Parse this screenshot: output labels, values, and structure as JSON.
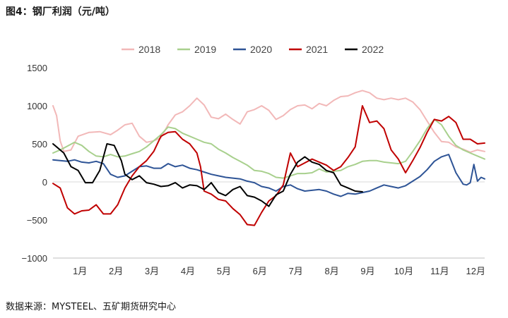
{
  "title": "图4：钢厂利润（元/吨）",
  "source": "数据来源：MYSTEEL、五矿期货研究中心",
  "chart_data": {
    "type": "line",
    "ylim": [
      -1000,
      1500
    ],
    "yticks": [
      "1500",
      "1000",
      "500",
      "0",
      "−500",
      "−1000"
    ],
    "ytick_values": [
      1500,
      1000,
      500,
      0,
      -500,
      -1000
    ],
    "xlim": [
      0,
      12
    ],
    "categories": [
      "1月",
      "2月",
      "3月",
      "4月",
      "5月",
      "6月",
      "7月",
      "8月",
      "9月",
      "10月",
      "11月",
      "12月"
    ],
    "category_positions": [
      0.75,
      1.75,
      2.75,
      3.75,
      4.75,
      5.75,
      6.75,
      7.75,
      8.75,
      9.75,
      10.75,
      11.75
    ],
    "legend_position": "top",
    "series": [
      {
        "name": "2018",
        "color": "#f2b8b8",
        "x": [
          0,
          0.1,
          0.2,
          0.3,
          0.5,
          0.7,
          1.0,
          1.3,
          1.6,
          1.8,
          2.0,
          2.2,
          2.4,
          2.6,
          2.8,
          3.0,
          3.2,
          3.4,
          3.6,
          3.8,
          4.0,
          4.2,
          4.4,
          4.6,
          4.8,
          5.0,
          5.2,
          5.4,
          5.6,
          5.8,
          6.0,
          6.2,
          6.4,
          6.6,
          6.8,
          7.0,
          7.2,
          7.4,
          7.6,
          7.8,
          8.0,
          8.2,
          8.4,
          8.6,
          8.8,
          9.0,
          9.2,
          9.4,
          9.6,
          9.8,
          10.0,
          10.2,
          10.4,
          10.6,
          10.8,
          11.0,
          11.2,
          11.4,
          11.6,
          11.8,
          12.0
        ],
        "y": [
          1000,
          870,
          540,
          400,
          420,
          600,
          650,
          660,
          620,
          680,
          750,
          770,
          600,
          520,
          540,
          580,
          750,
          880,
          920,
          1000,
          1100,
          1010,
          850,
          830,
          890,
          820,
          760,
          920,
          950,
          1000,
          940,
          820,
          870,
          950,
          1000,
          1010,
          960,
          1030,
          1000,
          1070,
          1120,
          1130,
          1170,
          1200,
          1170,
          1100,
          1080,
          1100,
          1080,
          1100,
          1050,
          950,
          800,
          650,
          530,
          520,
          460,
          430,
          390,
          420,
          400
        ]
      },
      {
        "name": "2019",
        "color": "#a8d08d",
        "x": [
          0,
          0.2,
          0.4,
          0.6,
          0.8,
          1.0,
          1.2,
          1.4,
          1.6,
          1.8,
          2.0,
          2.2,
          2.4,
          2.6,
          2.8,
          3.0,
          3.2,
          3.4,
          3.6,
          3.8,
          4.0,
          4.2,
          4.4,
          4.6,
          4.8,
          5.0,
          5.2,
          5.4,
          5.6,
          5.8,
          6.0,
          6.2,
          6.4,
          6.6,
          6.8,
          7.0,
          7.2,
          7.4,
          7.6,
          7.8,
          8.0,
          8.2,
          8.4,
          8.6,
          8.8,
          9.0,
          9.2,
          9.4,
          9.6,
          9.8,
          10.0,
          10.2,
          10.4,
          10.6,
          10.8,
          11.0,
          11.2,
          11.4,
          11.6,
          11.8,
          12.0
        ],
        "y": [
          380,
          420,
          470,
          520,
          480,
          400,
          340,
          330,
          360,
          330,
          340,
          370,
          400,
          460,
          540,
          620,
          720,
          700,
          640,
          600,
          560,
          520,
          500,
          430,
          380,
          320,
          270,
          220,
          150,
          140,
          110,
          60,
          50,
          80,
          110,
          110,
          120,
          170,
          130,
          140,
          150,
          200,
          230,
          270,
          280,
          280,
          260,
          250,
          240,
          270,
          400,
          540,
          700,
          820,
          750,
          600,
          480,
          420,
          380,
          340,
          300
        ]
      },
      {
        "name": "2020",
        "color": "#2e5496",
        "x": [
          0,
          0.2,
          0.4,
          0.6,
          0.8,
          1.0,
          1.2,
          1.4,
          1.6,
          1.8,
          2.0,
          2.2,
          2.4,
          2.6,
          2.8,
          3.0,
          3.2,
          3.4,
          3.6,
          3.8,
          4.0,
          4.2,
          4.4,
          4.6,
          4.8,
          5.0,
          5.2,
          5.4,
          5.6,
          5.8,
          6.0,
          6.2,
          6.4,
          6.6,
          6.8,
          7.0,
          7.2,
          7.4,
          7.6,
          7.8,
          8.0,
          8.2,
          8.4,
          8.6,
          8.8,
          9.0,
          9.2,
          9.4,
          9.6,
          9.8,
          10.0,
          10.2,
          10.4,
          10.6,
          10.8,
          11.0,
          11.2,
          11.4,
          11.5,
          11.6,
          11.7,
          11.8,
          11.9,
          12.0
        ],
        "y": [
          290,
          280,
          270,
          290,
          260,
          250,
          270,
          240,
          100,
          60,
          80,
          140,
          200,
          210,
          180,
          180,
          240,
          200,
          220,
          180,
          160,
          130,
          100,
          80,
          60,
          50,
          40,
          10,
          -10,
          -60,
          -80,
          -120,
          -60,
          -40,
          -90,
          -120,
          -110,
          -100,
          -120,
          -160,
          -190,
          -150,
          -160,
          -140,
          -120,
          -80,
          -40,
          -60,
          -80,
          -50,
          10,
          70,
          160,
          270,
          330,
          360,
          120,
          -30,
          -40,
          -10,
          230,
          10,
          60,
          40
        ]
      },
      {
        "name": "2021",
        "color": "#c00000",
        "x": [
          0,
          0.2,
          0.4,
          0.6,
          0.8,
          1.0,
          1.2,
          1.4,
          1.6,
          1.8,
          2.0,
          2.2,
          2.4,
          2.6,
          2.8,
          3.0,
          3.2,
          3.4,
          3.6,
          3.8,
          4.0,
          4.1,
          4.2,
          4.4,
          4.6,
          4.8,
          5.0,
          5.2,
          5.4,
          5.6,
          5.8,
          6.0,
          6.2,
          6.4,
          6.6,
          6.8,
          7.0,
          7.2,
          7.4,
          7.6,
          7.8,
          8.0,
          8.2,
          8.4,
          8.6,
          8.8,
          9.0,
          9.2,
          9.4,
          9.6,
          9.8,
          10.0,
          10.2,
          10.4,
          10.6,
          10.8,
          11.0,
          11.2,
          11.4,
          11.6,
          11.8,
          12.0
        ],
        "y": [
          -20,
          -80,
          -340,
          -420,
          -380,
          -370,
          -300,
          -420,
          -420,
          -300,
          -80,
          80,
          200,
          280,
          400,
          600,
          650,
          660,
          560,
          500,
          380,
          200,
          -120,
          -160,
          -230,
          -250,
          -350,
          -430,
          -560,
          -570,
          -400,
          -250,
          -180,
          -40,
          380,
          200,
          250,
          300,
          260,
          220,
          150,
          200,
          320,
          460,
          1000,
          780,
          800,
          700,
          420,
          300,
          120,
          280,
          450,
          650,
          820,
          800,
          860,
          780,
          560,
          560,
          500,
          510
        ]
      },
      {
        "name": "2022",
        "color": "#000000",
        "x": [
          0,
          0.1,
          0.3,
          0.5,
          0.7,
          0.9,
          1.1,
          1.3,
          1.5,
          1.7,
          1.9,
          2.0,
          2.2,
          2.4,
          2.6,
          2.8,
          3.0,
          3.2,
          3.4,
          3.6,
          3.8,
          4.0,
          4.2,
          4.4,
          4.6,
          4.8,
          5.0,
          5.2,
          5.4,
          5.6,
          5.8,
          6.0,
          6.2,
          6.4,
          6.6,
          6.8,
          7.0,
          7.2,
          7.4,
          7.6,
          7.8,
          8.0,
          8.2,
          8.4,
          8.6
        ],
        "y": [
          500,
          460,
          380,
          200,
          150,
          -10,
          -10,
          150,
          500,
          480,
          280,
          100,
          30,
          80,
          -10,
          -30,
          -60,
          -50,
          -10,
          -80,
          -40,
          -50,
          -100,
          -10,
          -140,
          -180,
          -100,
          -60,
          -180,
          -200,
          -250,
          -320,
          -170,
          -120,
          100,
          260,
          330,
          260,
          230,
          150,
          120,
          -40,
          -80,
          -120,
          -130
        ]
      }
    ]
  }
}
